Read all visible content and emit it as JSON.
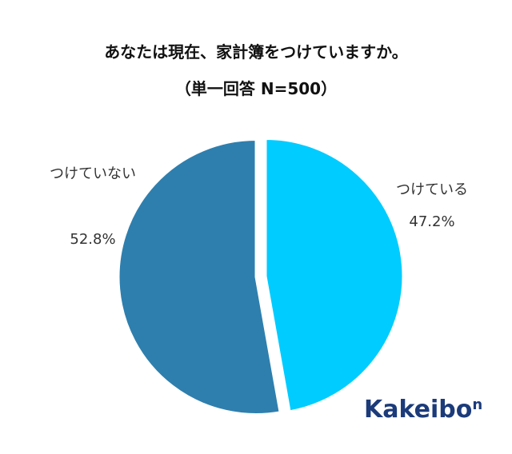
{
  "chart_data": {
    "type": "pie",
    "title": "あなたは現在、家計簿をつけていますか。",
    "subtitle": "（単一回答 N=500）",
    "categories": [
      "つけている",
      "つけていない"
    ],
    "values": [
      47.2,
      52.8
    ],
    "value_labels": [
      "47.2%",
      "52.8%"
    ],
    "colors": [
      "#00ccff",
      "#2e7fae"
    ],
    "logo": [
      "Kakeibo",
      "n"
    ]
  }
}
